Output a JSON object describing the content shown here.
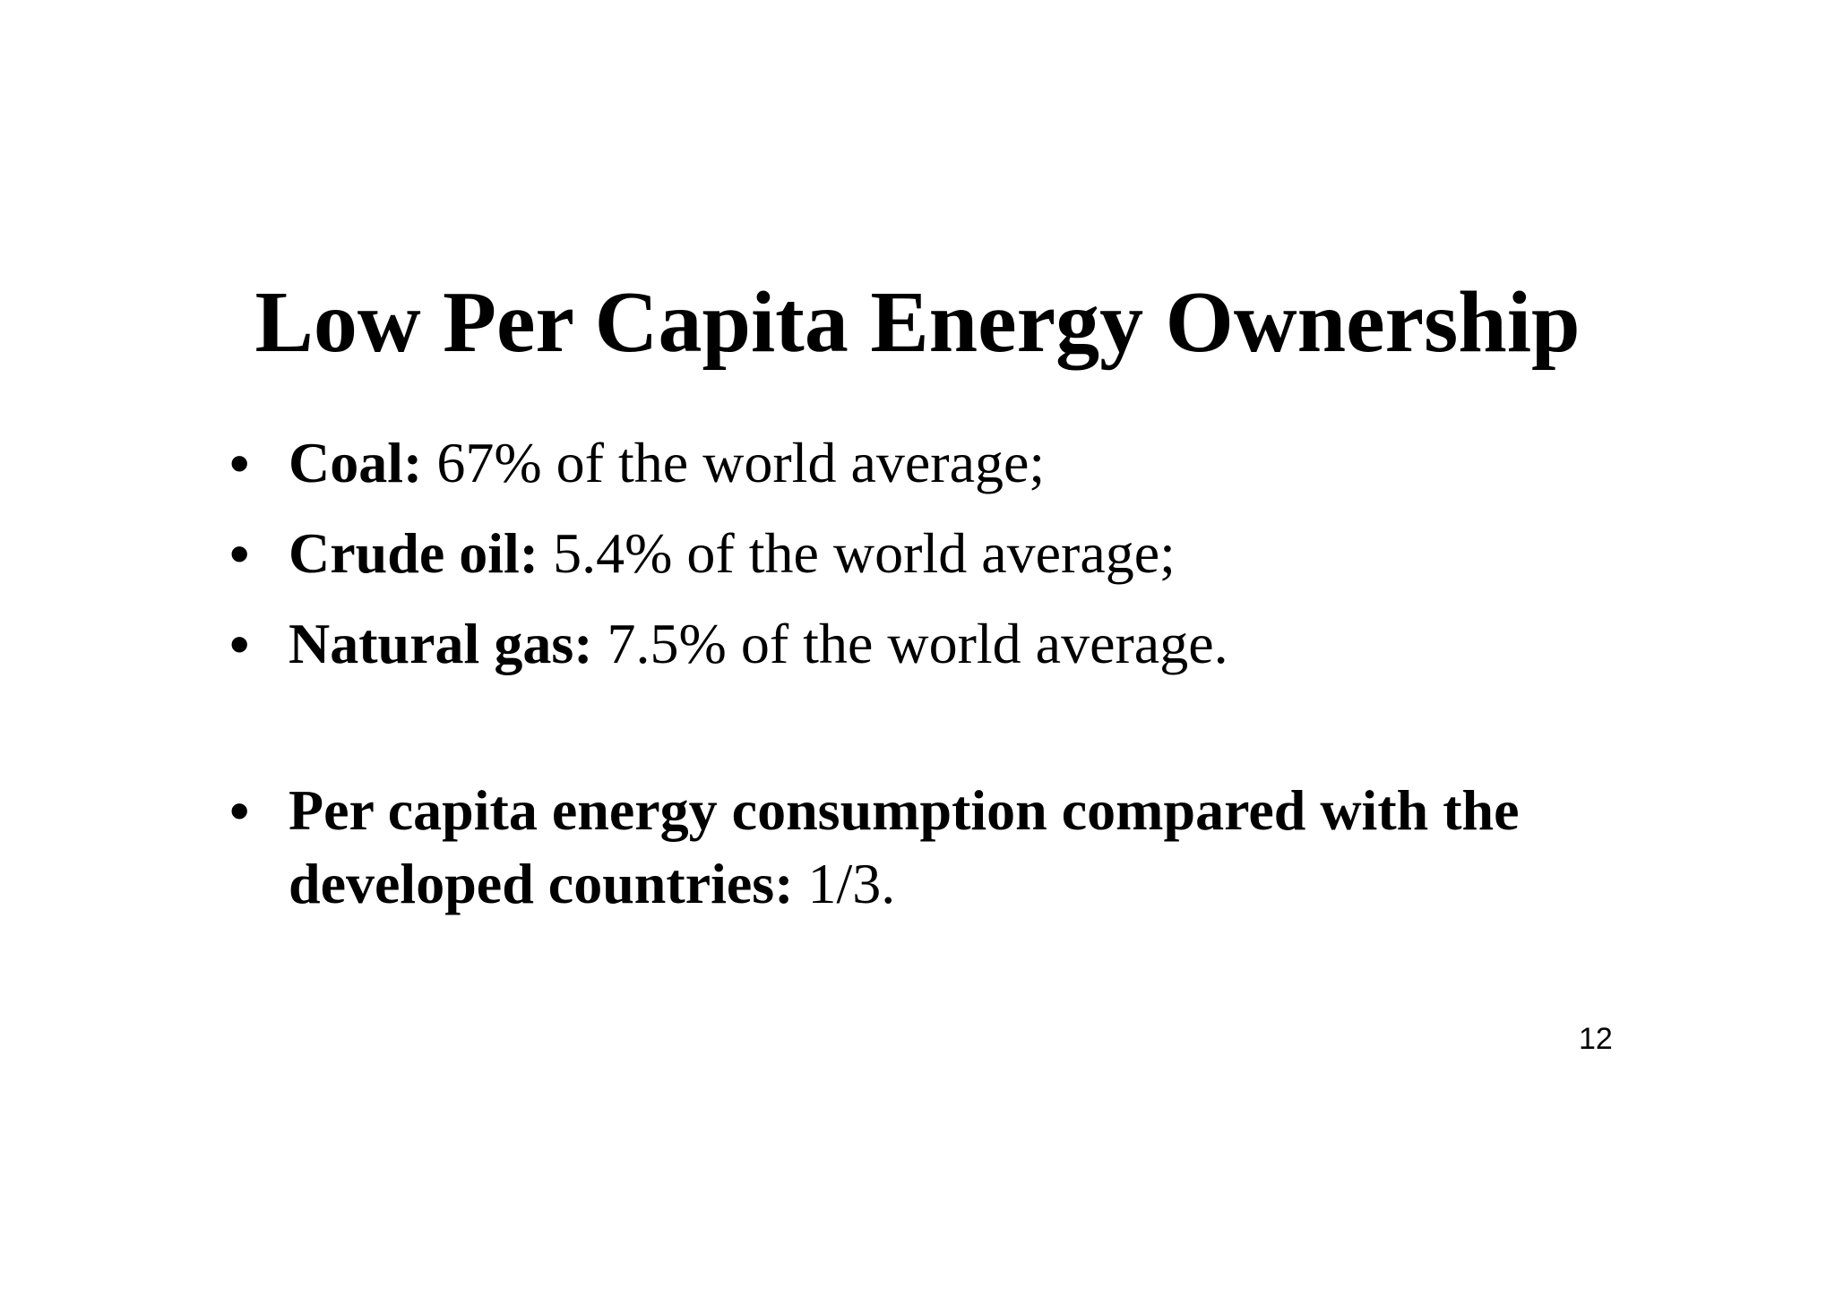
{
  "slide": {
    "title": "Low Per Capita Energy Ownership",
    "bullets": [
      {
        "label": "Coal:",
        "text": " 67% of the world average;"
      },
      {
        "label": "Crude oil:",
        "text": " 5.4% of the world average;"
      },
      {
        "label": "Natural gas:",
        "text": " 7.5% of the world average."
      },
      {
        "label": "Per capita energy consumption compared with the developed countries:",
        "text": " 1/3."
      }
    ],
    "bullet_symbol": "•",
    "page_number": "12"
  }
}
